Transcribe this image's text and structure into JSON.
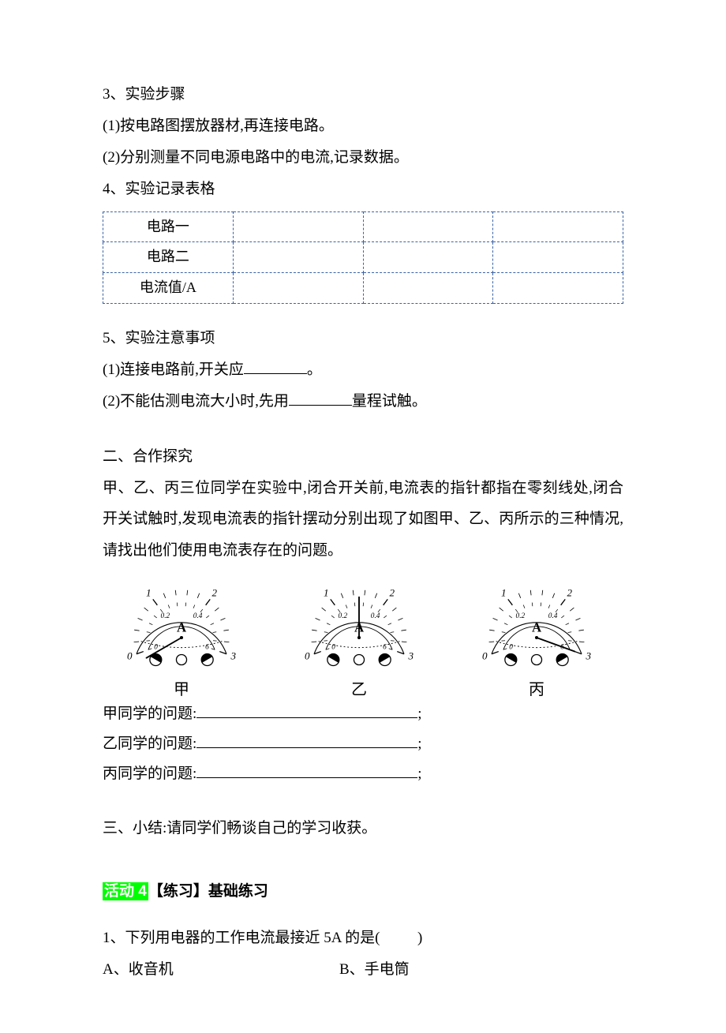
{
  "section3": {
    "title": "3、实验步骤",
    "step1": "(1)按电路图摆放器材,再连接电路。",
    "step2": "(2)分别测量不同电源电路中的电流,记录数据。"
  },
  "section4": {
    "title": "4、实验记录表格",
    "rows": {
      "r1": "电路一",
      "r2": "电路二",
      "r3": "电流值/A"
    },
    "border_color": "#3a63a8"
  },
  "section5": {
    "title": "5、实验注意事项",
    "item1_pre": "(1)连接电路前,开关应",
    "item1_post": "。",
    "item2_pre": "(2)不能估测电流大小时,先用",
    "item2_post": "量程试触。"
  },
  "section_explore": {
    "heading": "二、合作探究",
    "body": "甲、乙、丙三位同学在实验中,闭合开关前,电流表的指针都指在零刻线处,闭合开关试触时,发现电流表的指针摆动分别出现了如图甲、乙、丙所示的三种情况,请找出他们使用电流表存在的问题。"
  },
  "ammeter": {
    "outer_ticks": [
      "0",
      "1",
      "2",
      "3"
    ],
    "inner_ticks": [
      "0",
      "0.2",
      "0.4",
      "6"
    ],
    "unit": "A",
    "labels": {
      "a": "甲",
      "b": "乙",
      "c": "丙"
    },
    "needle_angles": {
      "a": 210,
      "b": 90,
      "c": -20
    },
    "colors": {
      "stroke": "#000000",
      "needle": "#000000",
      "bg": "#ffffff"
    }
  },
  "answers": {
    "a_label": "甲同学的问题:",
    "b_label": "乙同学的问题:",
    "c_label": "丙同学的问题:",
    "tail": ";"
  },
  "summary": {
    "text": "三、小结:请同学们畅谈自己的学习收获。"
  },
  "activity4": {
    "hl": "活动 4",
    "rest": "【练习】基础练习"
  },
  "q1": {
    "stem_pre": "1、下列用电器的工作电流最接近 5A 的是(",
    "stem_post": ")",
    "optA": "A、收音机",
    "optB": "B、手电筒"
  }
}
